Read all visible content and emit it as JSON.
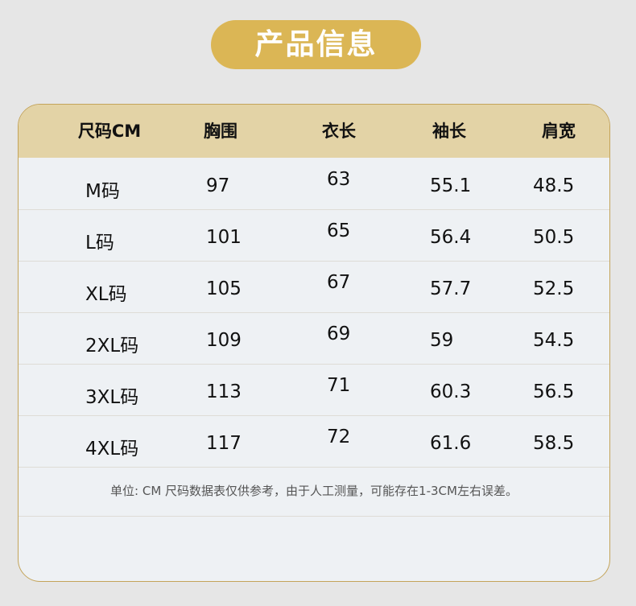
{
  "title": "产品信息",
  "table": {
    "headers": [
      "尺码CM",
      "胸围",
      "衣长",
      "袖长",
      "肩宽"
    ],
    "rows": [
      [
        "M码",
        "97",
        "63",
        "55.1",
        "48.5"
      ],
      [
        "L码",
        "101",
        "65",
        "56.4",
        "50.5"
      ],
      [
        "XL码",
        "105",
        "67",
        "57.7",
        "52.5"
      ],
      [
        "2XL码",
        "109",
        "69",
        "59",
        "54.5"
      ],
      [
        "3XL码",
        "113",
        "71",
        "60.3",
        "56.5"
      ],
      [
        "4XL码",
        "117",
        "72",
        "61.6",
        "58.5"
      ]
    ]
  },
  "note": "单位: CM  尺码数据表仅供参考，由于人工测量，可能存在1-3CM左右误差。",
  "colors": {
    "accent": "#dbb655",
    "header_bg": "#e3d3a6",
    "border": "#c4a45a"
  }
}
